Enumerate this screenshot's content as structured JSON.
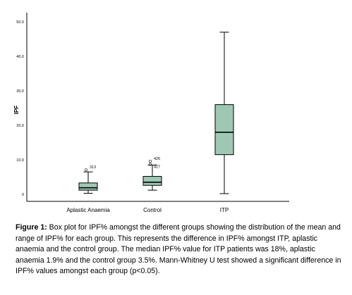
{
  "chart_data": {
    "type": "boxplot",
    "ylabel": "IPF",
    "ylim": [
      0,
      50
    ],
    "yticks": [
      0,
      10.0,
      20.0,
      30.0,
      40.0,
      50.0
    ],
    "ytick_labels": [
      "0",
      "10.0",
      "20.0",
      "30.0",
      "40.0",
      "50.0"
    ],
    "categories": [
      "Aplastic Anaemia",
      "Control",
      "ITP"
    ],
    "box_color": "#9ec8b4",
    "boxes": [
      {
        "category": "Aplastic Anaemia",
        "whisker_low": 0.3,
        "q1": 1.2,
        "median": 1.9,
        "q3": 3.3,
        "whisker_high": 6.5,
        "outliers": [
          {
            "value": 7.1,
            "label": "313"
          }
        ]
      },
      {
        "category": "Control",
        "whisker_low": 1.2,
        "q1": 2.6,
        "median": 3.5,
        "q3": 5.2,
        "whisker_high": 8.5,
        "outliers": [
          {
            "value": 9.6,
            "label": "426"
          },
          {
            "value": 8.7,
            "label": "427"
          }
        ]
      },
      {
        "category": "ITP",
        "whisker_low": 0.2,
        "q1": 11.5,
        "median": 18.0,
        "q3": 26.0,
        "whisker_high": 47.0,
        "outliers": []
      }
    ]
  },
  "caption": {
    "label": "Figure 1:",
    "text": " Box plot for IPF% amongst the different groups showing the distribution of the mean and range of IPF% for each group. This represents the difference in IPF% amongst ITP, aplastic anaemia and the control group. The median IPF% value for ITP patients was 18%, aplastic anaemia 1.9% and the control group 3.5%. Mann-Whitney U test showed a significant difference in IPF% values amongst each group (p<0.05)."
  }
}
